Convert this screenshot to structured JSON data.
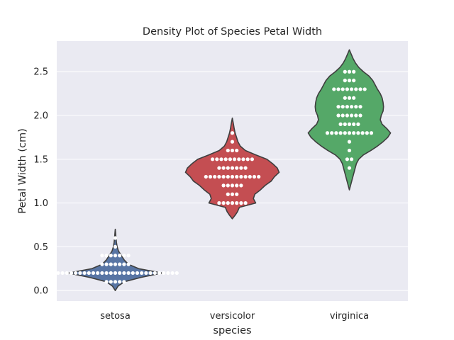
{
  "chart_data": {
    "type": "violin",
    "title": "Density Plot of Species Petal Width",
    "xlabel": "species",
    "ylabel": "Petal Width (cm)",
    "categories": [
      "setosa",
      "versicolor",
      "virginica"
    ],
    "ylim": [
      -0.12,
      2.85
    ],
    "yticks": [
      "0.0",
      "0.5",
      "1.0",
      "1.5",
      "2.0",
      "2.5"
    ],
    "grid": true,
    "colors": {
      "setosa": "#5875a4",
      "versicolor": "#c44e52",
      "virginica": "#55a868",
      "background": "#eaeaf2",
      "outline": "#3f3f3f",
      "point": "#ffffff"
    },
    "series": [
      {
        "category": "setosa",
        "color": "#5875a4",
        "range": [
          0.0,
          0.7
        ],
        "density_profile": [
          [
            0.0,
            0.0
          ],
          [
            0.05,
            0.06
          ],
          [
            0.1,
            0.19
          ],
          [
            0.15,
            0.55
          ],
          [
            0.2,
            1.0
          ],
          [
            0.25,
            0.5
          ],
          [
            0.3,
            0.28
          ],
          [
            0.35,
            0.19
          ],
          [
            0.4,
            0.13
          ],
          [
            0.45,
            0.07
          ],
          [
            0.5,
            0.04
          ],
          [
            0.55,
            0.025
          ],
          [
            0.6,
            0.015
          ],
          [
            0.65,
            0.008
          ],
          [
            0.7,
            0.0
          ]
        ],
        "values": [
          0.1,
          0.1,
          0.1,
          0.1,
          0.1,
          0.2,
          0.2,
          0.2,
          0.2,
          0.2,
          0.2,
          0.2,
          0.2,
          0.2,
          0.2,
          0.2,
          0.2,
          0.2,
          0.2,
          0.2,
          0.2,
          0.2,
          0.2,
          0.2,
          0.2,
          0.2,
          0.2,
          0.2,
          0.2,
          0.2,
          0.2,
          0.2,
          0.2,
          0.2,
          0.3,
          0.3,
          0.3,
          0.3,
          0.3,
          0.3,
          0.3,
          0.4,
          0.4,
          0.4,
          0.4,
          0.4,
          0.4,
          0.4,
          0.5,
          0.6
        ]
      },
      {
        "category": "versicolor",
        "color": "#c44e52",
        "range": [
          0.82,
          1.97
        ],
        "density_profile": [
          [
            0.82,
            0.0
          ],
          [
            0.86,
            0.06
          ],
          [
            0.9,
            0.11
          ],
          [
            0.95,
            0.15
          ],
          [
            1.0,
            0.5
          ],
          [
            1.05,
            0.45
          ],
          [
            1.1,
            0.48
          ],
          [
            1.15,
            0.6
          ],
          [
            1.2,
            0.7
          ],
          [
            1.25,
            0.83
          ],
          [
            1.3,
            0.9
          ],
          [
            1.35,
            1.0
          ],
          [
            1.4,
            0.96
          ],
          [
            1.45,
            0.86
          ],
          [
            1.5,
            0.74
          ],
          [
            1.55,
            0.5
          ],
          [
            1.6,
            0.28
          ],
          [
            1.65,
            0.17
          ],
          [
            1.7,
            0.12
          ],
          [
            1.75,
            0.09
          ],
          [
            1.8,
            0.06
          ],
          [
            1.85,
            0.04
          ],
          [
            1.9,
            0.025
          ],
          [
            1.97,
            0.0
          ]
        ],
        "values": [
          1.0,
          1.0,
          1.0,
          1.0,
          1.0,
          1.0,
          1.0,
          1.1,
          1.1,
          1.1,
          1.2,
          1.2,
          1.2,
          1.2,
          1.2,
          1.3,
          1.3,
          1.3,
          1.3,
          1.3,
          1.3,
          1.3,
          1.3,
          1.3,
          1.3,
          1.3,
          1.3,
          1.3,
          1.4,
          1.4,
          1.4,
          1.4,
          1.4,
          1.4,
          1.4,
          1.5,
          1.5,
          1.5,
          1.5,
          1.5,
          1.5,
          1.5,
          1.5,
          1.5,
          1.5,
          1.6,
          1.6,
          1.6,
          1.7,
          1.8
        ]
      },
      {
        "category": "virginica",
        "color": "#55a868",
        "range": [
          1.15,
          2.75
        ],
        "density_profile": [
          [
            1.15,
            0.0
          ],
          [
            1.25,
            0.05
          ],
          [
            1.35,
            0.1
          ],
          [
            1.45,
            0.15
          ],
          [
            1.5,
            0.2
          ],
          [
            1.55,
            0.3
          ],
          [
            1.6,
            0.46
          ],
          [
            1.65,
            0.6
          ],
          [
            1.7,
            0.72
          ],
          [
            1.75,
            0.82
          ],
          [
            1.8,
            0.88
          ],
          [
            1.85,
            0.8
          ],
          [
            1.9,
            0.7
          ],
          [
            1.95,
            0.66
          ],
          [
            2.0,
            0.68
          ],
          [
            2.05,
            0.72
          ],
          [
            2.1,
            0.73
          ],
          [
            2.15,
            0.72
          ],
          [
            2.2,
            0.7
          ],
          [
            2.25,
            0.66
          ],
          [
            2.3,
            0.6
          ],
          [
            2.35,
            0.55
          ],
          [
            2.4,
            0.5
          ],
          [
            2.45,
            0.42
          ],
          [
            2.5,
            0.3
          ],
          [
            2.55,
            0.2
          ],
          [
            2.6,
            0.13
          ],
          [
            2.65,
            0.08
          ],
          [
            2.7,
            0.04
          ],
          [
            2.75,
            0.0
          ]
        ],
        "values": [
          1.4,
          1.5,
          1.5,
          1.6,
          1.7,
          1.8,
          1.8,
          1.8,
          1.8,
          1.8,
          1.8,
          1.8,
          1.8,
          1.8,
          1.8,
          1.8,
          1.9,
          1.9,
          1.9,
          1.9,
          1.9,
          2.0,
          2.0,
          2.0,
          2.0,
          2.0,
          2.0,
          2.1,
          2.1,
          2.1,
          2.1,
          2.1,
          2.1,
          2.2,
          2.2,
          2.2,
          2.3,
          2.3,
          2.3,
          2.3,
          2.3,
          2.3,
          2.3,
          2.3,
          2.4,
          2.4,
          2.4,
          2.5,
          2.5,
          2.5
        ]
      }
    ]
  }
}
